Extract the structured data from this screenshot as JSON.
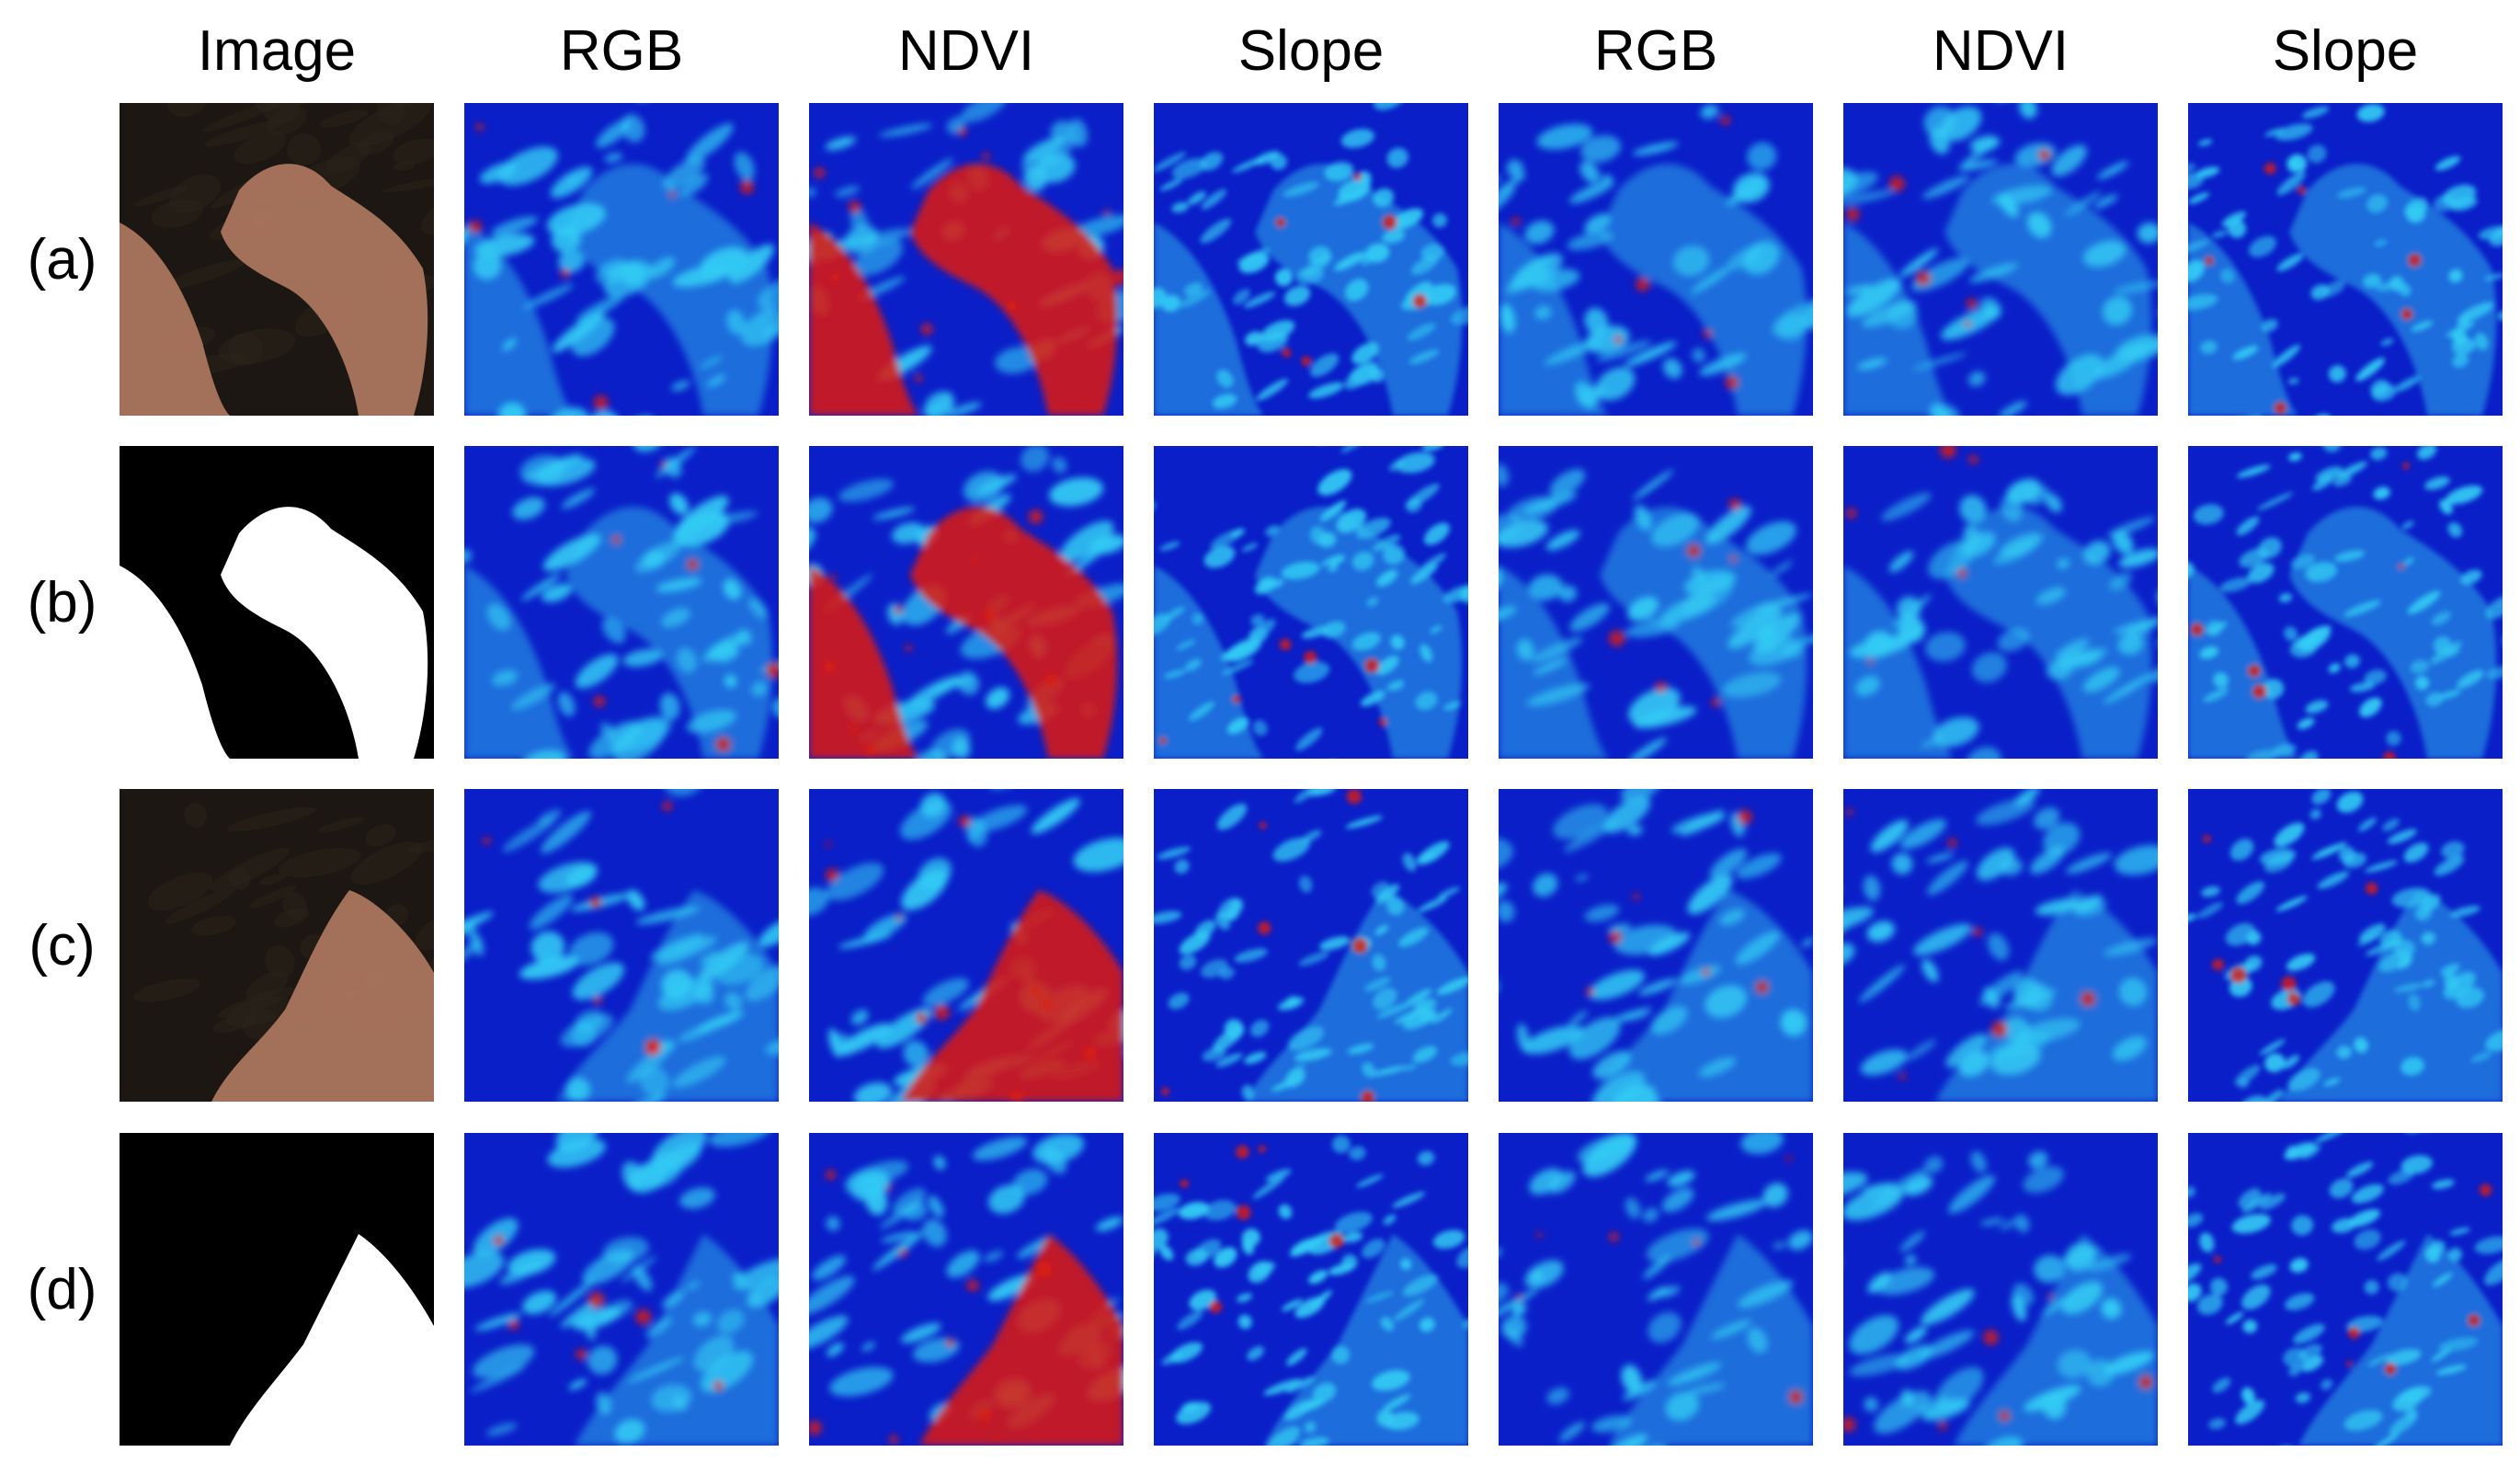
{
  "figure": {
    "column_headers": [
      "Image",
      "RGB",
      "NDVI",
      "Slope",
      "RGB",
      "NDVI",
      "Slope"
    ],
    "row_labels": [
      "(a)",
      "(b)",
      "(c)",
      "(d)"
    ],
    "colormap": "jet",
    "colors": {
      "background": "#ffffff",
      "jet_low": "#0a1fc8",
      "jet_mid": "#33ccf5",
      "jet_high": "#e01a0a",
      "rgb_terrain_dark": "#1c1712",
      "rgb_terrain_highlight": "#b27a62",
      "mask_on": "#ffffff",
      "mask_off": "#000000"
    },
    "panel_kinds": [
      "photo",
      "mask",
      "heatmap"
    ]
  }
}
